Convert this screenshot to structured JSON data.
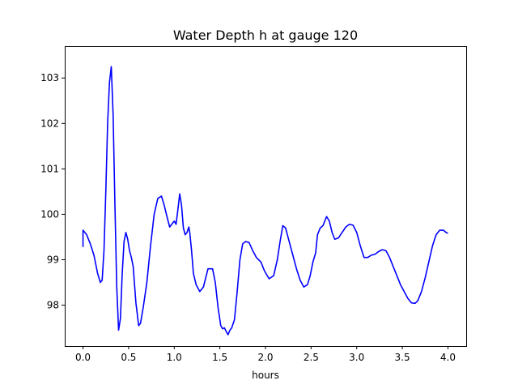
{
  "chart_data": {
    "type": "line",
    "title": "Water Depth h at gauge 120",
    "xlabel": "hours",
    "ylabel": "",
    "xlim": [
      -0.2,
      4.2
    ],
    "ylim": [
      97.1,
      103.7
    ],
    "xticks": [
      0.0,
      0.5,
      1.0,
      1.5,
      2.0,
      2.5,
      3.0,
      3.5,
      4.0
    ],
    "xtick_labels": [
      "0.0",
      "0.5",
      "1.0",
      "1.5",
      "2.0",
      "2.5",
      "3.0",
      "3.5",
      "4.0"
    ],
    "yticks": [
      98,
      99,
      100,
      101,
      102,
      103
    ],
    "ytick_labels": [
      "98",
      "99",
      "100",
      "101",
      "102",
      "103"
    ],
    "grid": false,
    "series": [
      {
        "color": "#0000ff",
        "x": [
          0.0,
          0.0,
          0.04,
          0.08,
          0.12,
          0.16,
          0.19,
          0.21,
          0.23,
          0.25,
          0.27,
          0.29,
          0.31,
          0.33,
          0.35,
          0.37,
          0.39,
          0.41,
          0.43,
          0.45,
          0.47,
          0.49,
          0.51,
          0.53,
          0.55,
          0.58,
          0.61,
          0.63,
          0.66,
          0.7,
          0.74,
          0.78,
          0.82,
          0.86,
          0.89,
          0.92,
          0.95,
          0.98,
          1.0,
          1.02,
          1.04,
          1.06,
          1.08,
          1.1,
          1.12,
          1.14,
          1.16,
          1.17,
          1.19,
          1.21,
          1.24,
          1.28,
          1.32,
          1.37,
          1.42,
          1.45,
          1.48,
          1.51,
          1.53,
          1.55,
          1.57,
          1.59,
          1.61,
          1.63,
          1.66,
          1.69,
          1.72,
          1.75,
          1.78,
          1.82,
          1.86,
          1.9,
          1.95,
          1.99,
          2.04,
          2.09,
          2.13,
          2.16,
          2.19,
          2.22,
          2.26,
          2.3,
          2.34,
          2.38,
          2.42,
          2.46,
          2.49,
          2.52,
          2.55,
          2.57,
          2.6,
          2.63,
          2.65,
          2.67,
          2.7,
          2.73,
          2.76,
          2.8,
          2.84,
          2.88,
          2.92,
          2.96,
          3.0,
          3.04,
          3.08,
          3.12,
          3.16,
          3.2,
          3.24,
          3.28,
          3.32,
          3.36,
          3.4,
          3.44,
          3.48,
          3.52,
          3.56,
          3.6,
          3.64,
          3.67,
          3.71,
          3.75,
          3.79,
          3.83,
          3.87,
          3.91,
          3.95,
          3.98,
          4.0
        ],
        "y": [
          99.28,
          99.65,
          99.55,
          99.35,
          99.1,
          98.7,
          98.5,
          98.55,
          99.2,
          100.5,
          102.0,
          102.9,
          103.25,
          102.2,
          100.2,
          98.4,
          97.45,
          97.7,
          98.7,
          99.4,
          99.6,
          99.45,
          99.2,
          99.05,
          98.85,
          98.05,
          97.55,
          97.6,
          97.95,
          98.5,
          99.3,
          100.0,
          100.35,
          100.4,
          100.2,
          99.95,
          99.72,
          99.8,
          99.85,
          99.78,
          100.1,
          100.45,
          100.2,
          99.7,
          99.55,
          99.6,
          99.72,
          99.6,
          99.2,
          98.7,
          98.45,
          98.3,
          98.4,
          98.8,
          98.8,
          98.5,
          97.95,
          97.55,
          97.48,
          97.5,
          97.42,
          97.35,
          97.45,
          97.5,
          97.68,
          98.3,
          99.0,
          99.35,
          99.4,
          99.38,
          99.2,
          99.05,
          98.95,
          98.75,
          98.58,
          98.65,
          99.0,
          99.4,
          99.75,
          99.7,
          99.4,
          99.1,
          98.8,
          98.55,
          98.4,
          98.45,
          98.65,
          98.95,
          99.15,
          99.55,
          99.7,
          99.75,
          99.85,
          99.95,
          99.85,
          99.6,
          99.45,
          99.48,
          99.6,
          99.72,
          99.78,
          99.76,
          99.6,
          99.3,
          99.05,
          99.05,
          99.1,
          99.12,
          99.18,
          99.22,
          99.2,
          99.05,
          98.85,
          98.65,
          98.45,
          98.3,
          98.15,
          98.05,
          98.04,
          98.1,
          98.3,
          98.6,
          98.95,
          99.3,
          99.55,
          99.65,
          99.65,
          99.6,
          99.58
        ]
      }
    ]
  }
}
